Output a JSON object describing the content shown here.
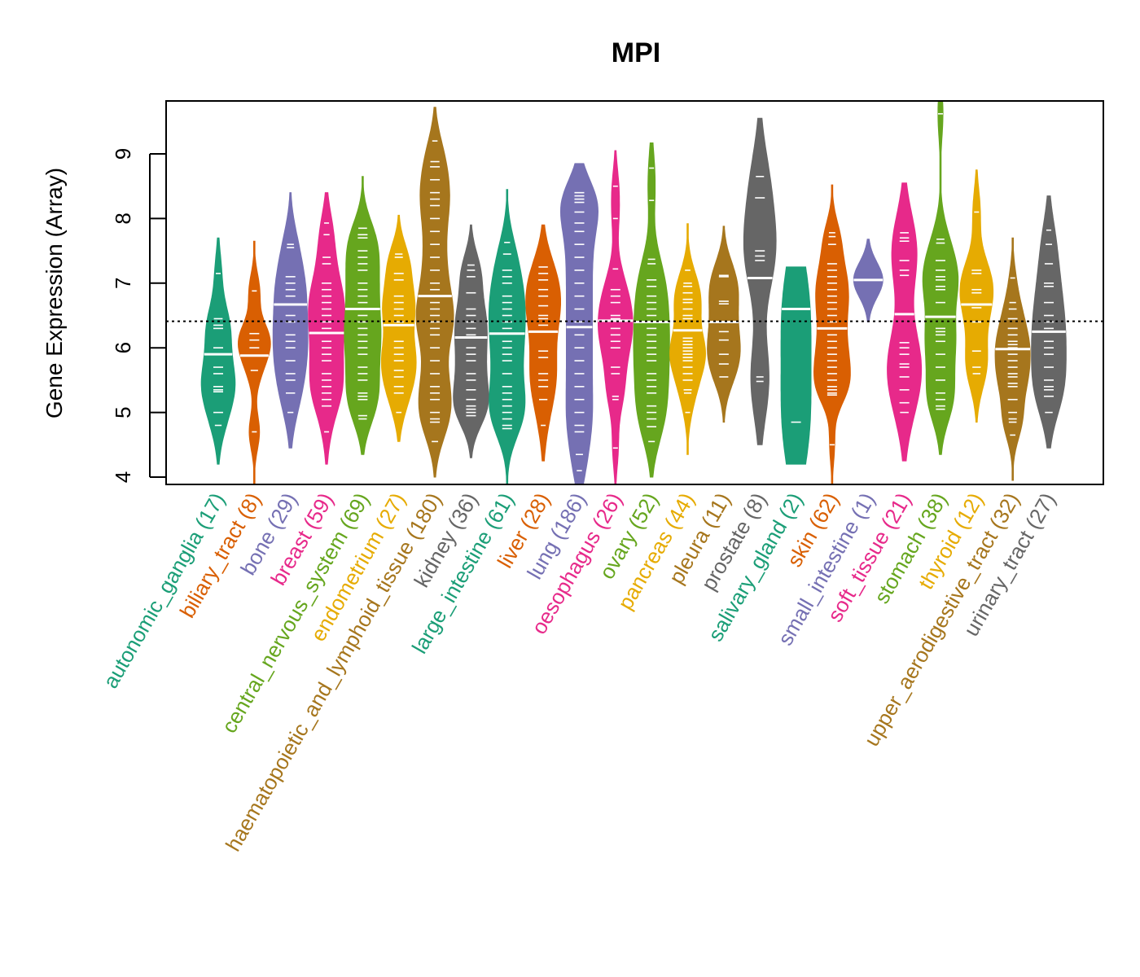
{
  "chart_data": {
    "type": "violin",
    "title": "MPI",
    "xlabel": "",
    "ylabel": "Gene Expression (Array)",
    "ylim": [
      3.9,
      9.85
    ],
    "yticks": [
      4,
      5,
      6,
      7,
      8,
      9
    ],
    "reference_line": 6.41,
    "grid": false,
    "legend": "none",
    "categories": [
      {
        "name": "autonomic_ganglia",
        "n": 17,
        "label": "autonomic_ganglia (17)",
        "color": "#1B9E77",
        "min": 4.2,
        "max": 7.7,
        "median": 5.9,
        "q1": 5.4,
        "q3": 6.4,
        "points": [
          7.15,
          6.45,
          6.35,
          6.3,
          6.0,
          5.7,
          5.6,
          5.4,
          5.35,
          5.32,
          5.0,
          4.8
        ]
      },
      {
        "name": "biliary_tract",
        "n": 8,
        "label": "biliary_tract (8)",
        "color": "#D95F02",
        "min": 3.9,
        "max": 7.65,
        "median": 5.88,
        "q1": 5.5,
        "q3": 6.2,
        "points": [
          6.88,
          6.22,
          6.12,
          6.0,
          5.65,
          4.7
        ]
      },
      {
        "name": "bone",
        "n": 29,
        "label": "bone (29)",
        "color": "#7570B3",
        "min": 4.45,
        "max": 8.4,
        "median": 6.67,
        "q1": 5.9,
        "q3": 7.1,
        "points": [
          7.6,
          7.55,
          7.1,
          7.0,
          6.9,
          6.8,
          6.5,
          6.4,
          6.2,
          6.1,
          6.0,
          5.8,
          5.6,
          5.5,
          5.3,
          5.0
        ]
      },
      {
        "name": "breast",
        "n": 59,
        "label": "breast (59)",
        "color": "#E7298A",
        "min": 4.2,
        "max": 8.4,
        "median": 6.23,
        "q1": 5.7,
        "q3": 6.8,
        "points": [
          7.93,
          7.75,
          7.4,
          7.3,
          7.0,
          6.9,
          6.8,
          6.7,
          6.6,
          6.5,
          6.4,
          6.3,
          6.1,
          6.0,
          5.9,
          5.8,
          5.6,
          5.5,
          5.4,
          5.3,
          5.2,
          5.1,
          4.7
        ]
      },
      {
        "name": "central_nervous_system",
        "n": 69,
        "label": "central_nervous_system (69)",
        "color": "#66A61E",
        "min": 4.35,
        "max": 8.65,
        "median": 6.6,
        "q1": 6.0,
        "q3": 7.1,
        "points": [
          7.85,
          7.75,
          7.7,
          7.5,
          7.4,
          7.3,
          7.2,
          7.0,
          6.9,
          6.8,
          6.7,
          6.5,
          6.4,
          6.3,
          6.2,
          6.1,
          6.0,
          5.9,
          5.7,
          5.6,
          5.5,
          5.3,
          5.25,
          5.2,
          4.95,
          4.9
        ]
      },
      {
        "name": "endometrium",
        "n": 27,
        "label": "endometrium (27)",
        "color": "#E6AB02",
        "min": 4.55,
        "max": 8.05,
        "median": 6.35,
        "q1": 5.9,
        "q3": 6.8,
        "points": [
          7.45,
          7.4,
          7.15,
          7.05,
          6.8,
          6.7,
          6.6,
          6.5,
          6.4,
          6.1,
          6.0,
          5.9,
          5.8,
          5.65,
          5.55,
          5.4,
          5.3,
          5.0
        ]
      },
      {
        "name": "haematopoietic_and_lymphoid_tissue",
        "n": 180,
        "label": "haematopoietic_and_lymphoid_tissue (180)",
        "color": "#A6761D",
        "min": 4.0,
        "max": 9.72,
        "median": 6.8,
        "q1": 6.2,
        "q3": 7.3,
        "points": [
          9.2,
          8.88,
          8.8,
          8.6,
          8.4,
          8.3,
          8.2,
          8.0,
          7.8,
          7.6,
          7.4,
          7.2,
          7.0,
          6.9,
          6.7,
          6.6,
          6.5,
          6.4,
          6.3,
          6.2,
          6.0,
          5.8,
          5.6,
          5.4,
          5.3,
          5.2,
          5.0,
          4.9,
          4.85,
          4.55
        ]
      },
      {
        "name": "kidney",
        "n": 36,
        "label": "kidney (36)",
        "color": "#666666",
        "min": 4.3,
        "max": 7.9,
        "median": 6.16,
        "q1": 5.6,
        "q3": 6.6,
        "points": [
          7.28,
          7.2,
          7.1,
          6.85,
          6.6,
          6.5,
          6.4,
          6.3,
          6.2,
          6.0,
          5.9,
          5.8,
          5.6,
          5.5,
          5.35,
          5.2,
          5.1,
          5.05,
          5.0,
          4.95
        ]
      },
      {
        "name": "large_intestine",
        "n": 61,
        "label": "large_intestine (61)",
        "color": "#1B9E77",
        "min": 3.9,
        "max": 8.45,
        "median": 6.22,
        "q1": 5.6,
        "q3": 6.8,
        "points": [
          7.63,
          7.45,
          7.2,
          7.1,
          7.0,
          6.8,
          6.7,
          6.6,
          6.5,
          6.4,
          6.3,
          6.1,
          6.0,
          5.9,
          5.8,
          5.6,
          5.4,
          5.3,
          5.2,
          5.1,
          5.0,
          4.9,
          4.8,
          4.75
        ]
      },
      {
        "name": "liver",
        "n": 28,
        "label": "liver (28)",
        "color": "#D95F02",
        "min": 4.25,
        "max": 7.9,
        "median": 6.25,
        "q1": 5.6,
        "q3": 6.8,
        "points": [
          7.25,
          7.15,
          7.05,
          6.9,
          6.8,
          6.65,
          6.5,
          6.45,
          6.35,
          5.95,
          5.85,
          5.6,
          5.5,
          5.4,
          5.2,
          4.8
        ]
      },
      {
        "name": "lung",
        "n": 186,
        "label": "lung (186)",
        "color": "#7570B3",
        "min": 3.9,
        "max": 8.85,
        "median": 6.32,
        "q1": 5.7,
        "q3": 6.9,
        "points": [
          8.4,
          8.35,
          8.3,
          8.25,
          8.1,
          7.93,
          7.8,
          7.6,
          7.4,
          7.2,
          7.0,
          6.8,
          6.6,
          6.4,
          6.2,
          6.0,
          5.8,
          5.6,
          5.4,
          5.2,
          5.0,
          4.8,
          4.7,
          4.35,
          4.1
        ]
      },
      {
        "name": "oesophagus",
        "n": 26,
        "label": "oesophagus (26)",
        "color": "#E7298A",
        "min": 3.9,
        "max": 9.05,
        "median": 6.42,
        "q1": 5.9,
        "q3": 6.9,
        "points": [
          8.5,
          8.0,
          7.22,
          6.9,
          6.8,
          6.7,
          6.5,
          6.45,
          6.3,
          6.2,
          6.1,
          6.0,
          5.7,
          5.6,
          5.25,
          5.2,
          4.45
        ]
      },
      {
        "name": "ovary",
        "n": 52,
        "label": "ovary (52)",
        "color": "#66A61E",
        "min": 4.0,
        "max": 9.17,
        "median": 6.4,
        "q1": 5.7,
        "q3": 7.0,
        "points": [
          8.78,
          8.28,
          7.37,
          7.3,
          7.05,
          6.95,
          6.8,
          6.7,
          6.6,
          6.5,
          6.3,
          6.2,
          6.1,
          6.0,
          5.9,
          5.8,
          5.6,
          5.5,
          5.4,
          5.3,
          5.1,
          5.0,
          4.9,
          4.78,
          4.55
        ]
      },
      {
        "name": "pancreas",
        "n": 44,
        "label": "pancreas (44)",
        "color": "#E6AB02",
        "min": 4.35,
        "max": 7.92,
        "median": 6.27,
        "q1": 5.8,
        "q3": 6.75,
        "points": [
          7.2,
          7.0,
          6.95,
          6.85,
          6.75,
          6.7,
          6.6,
          6.5,
          6.45,
          6.15,
          6.1,
          6.05,
          6.0,
          5.95,
          5.9,
          5.85,
          5.8,
          5.7,
          5.6,
          5.5,
          5.35,
          5.3,
          5.0
        ]
      },
      {
        "name": "pleura",
        "n": 11,
        "label": "pleura (11)",
        "color": "#A6761D",
        "min": 4.85,
        "max": 7.88,
        "median": 6.4,
        "q1": 5.9,
        "q3": 6.8,
        "points": [
          7.12,
          7.1,
          6.72,
          6.68,
          6.25,
          6.12,
          5.9,
          5.75,
          5.55
        ]
      },
      {
        "name": "prostate",
        "n": 8,
        "label": "prostate (8)",
        "color": "#666666",
        "min": 4.5,
        "max": 9.55,
        "median": 7.08,
        "q1": 5.9,
        "q3": 7.5,
        "points": [
          8.65,
          8.32,
          7.5,
          7.42,
          7.35,
          5.55,
          5.48
        ]
      },
      {
        "name": "salivary_gland",
        "n": 2,
        "label": "salivary_gland (2)",
        "color": "#1B9E77",
        "min": 4.2,
        "max": 7.25,
        "median": 6.6,
        "q1": 4.85,
        "q3": 6.6,
        "points": [
          6.6,
          4.85
        ]
      },
      {
        "name": "skin",
        "n": 62,
        "label": "skin (62)",
        "color": "#D95F02",
        "min": 3.9,
        "max": 8.52,
        "median": 6.3,
        "q1": 5.8,
        "q3": 6.8,
        "points": [
          7.78,
          7.72,
          7.6,
          7.3,
          7.2,
          7.1,
          7.0,
          6.9,
          6.8,
          6.7,
          6.6,
          6.5,
          6.4,
          6.2,
          6.1,
          6.0,
          5.9,
          5.8,
          5.7,
          5.6,
          5.5,
          5.4,
          5.35,
          5.3,
          5.27,
          4.5
        ]
      },
      {
        "name": "small_intestine",
        "n": 1,
        "label": "small_intestine (1)",
        "color": "#7570B3",
        "min": 6.4,
        "max": 7.68,
        "median": 7.05,
        "q1": 7.05,
        "q3": 7.05,
        "points": [
          7.05
        ]
      },
      {
        "name": "soft_tissue",
        "n": 21,
        "label": "soft_tissue (21)",
        "color": "#E7298A",
        "min": 4.25,
        "max": 8.55,
        "median": 6.52,
        "q1": 5.7,
        "q3": 7.3,
        "points": [
          7.78,
          7.7,
          7.65,
          7.35,
          7.2,
          7.12,
          6.08,
          6.0,
          5.9,
          5.75,
          5.7,
          5.55,
          5.35,
          5.15,
          5.0
        ]
      },
      {
        "name": "stomach",
        "n": 38,
        "label": "stomach (38)",
        "color": "#66A61E",
        "min": 4.35,
        "max": 9.85,
        "median": 6.48,
        "q1": 5.8,
        "q3": 7.0,
        "points": [
          9.62,
          7.68,
          7.62,
          7.35,
          7.2,
          7.1,
          7.05,
          6.95,
          6.9,
          6.7,
          6.3,
          6.25,
          6.2,
          6.1,
          5.9,
          5.7,
          5.5,
          5.3,
          5.2,
          5.1,
          5.05
        ]
      },
      {
        "name": "thyroid",
        "n": 12,
        "label": "thyroid (12)",
        "color": "#E6AB02",
        "min": 4.85,
        "max": 8.75,
        "median": 6.67,
        "q1": 6.0,
        "q3": 7.0,
        "points": [
          8.1,
          7.2,
          7.15,
          6.9,
          6.85,
          6.62,
          6.4,
          5.95,
          5.7,
          5.6
        ]
      },
      {
        "name": "upper_aerodigestive_tract",
        "n": 32,
        "label": "upper_aerodigestive_tract (32)",
        "color": "#A6761D",
        "min": 3.95,
        "max": 7.7,
        "median": 5.98,
        "q1": 5.5,
        "q3": 6.4,
        "points": [
          7.08,
          6.7,
          6.6,
          6.45,
          6.3,
          6.2,
          6.1,
          6.05,
          6.0,
          5.9,
          5.8,
          5.7,
          5.6,
          5.55,
          5.45,
          5.4,
          5.2,
          5.0,
          4.9,
          4.85,
          4.65
        ]
      },
      {
        "name": "urinary_tract",
        "n": 27,
        "label": "urinary_tract (27)",
        "color": "#666666",
        "min": 4.45,
        "max": 8.35,
        "median": 6.25,
        "q1": 5.6,
        "q3": 6.9,
        "points": [
          7.82,
          7.6,
          7.3,
          7.0,
          6.95,
          6.7,
          6.5,
          6.4,
          6.3,
          6.1,
          6.0,
          5.9,
          5.7,
          5.5,
          5.4,
          5.35,
          5.25,
          5.0
        ]
      }
    ]
  }
}
